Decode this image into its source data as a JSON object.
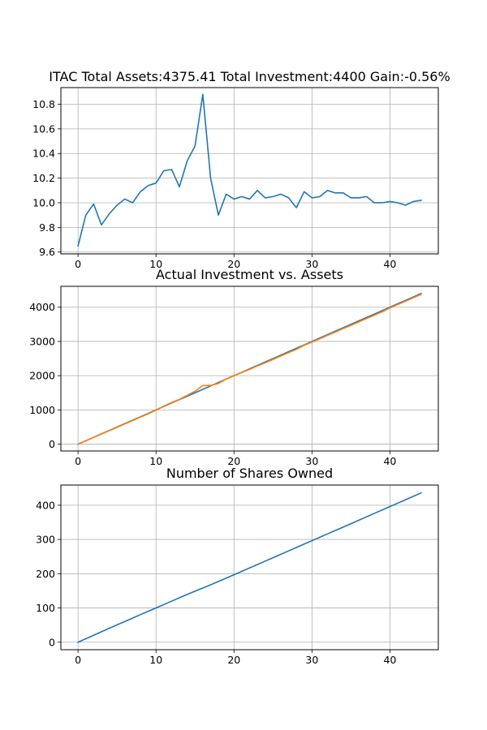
{
  "chart_data": [
    {
      "type": "line",
      "title": "ITAC Total Assets:4375.41  Total Investment:4400  Gain:-0.56%",
      "xlabel": "",
      "ylabel": "",
      "xlim": [
        -2.2,
        46.2
      ],
      "ylim": [
        9.585,
        10.935
      ],
      "xticks": [
        0,
        10,
        20,
        30,
        40
      ],
      "yticks": [
        9.6,
        9.8,
        10.0,
        10.2,
        10.4,
        10.6,
        10.8
      ],
      "ytick_labels": [
        "9.6",
        "9.8",
        "10.0",
        "10.2",
        "10.4",
        "10.6",
        "10.8"
      ],
      "grid": true,
      "series": [
        {
          "color": "#1f77b4",
          "x": [
            0,
            1,
            2,
            3,
            4,
            5,
            6,
            7,
            8,
            9,
            10,
            11,
            12,
            13,
            14,
            15,
            16,
            17,
            18,
            19,
            20,
            21,
            22,
            23,
            24,
            25,
            26,
            27,
            28,
            29,
            30,
            31,
            32,
            33,
            34,
            35,
            36,
            37,
            38,
            39,
            40,
            41,
            42,
            43,
            44
          ],
          "values": [
            9.65,
            9.9,
            9.99,
            9.82,
            9.91,
            9.98,
            10.03,
            10.0,
            10.09,
            10.14,
            10.16,
            10.26,
            10.27,
            10.13,
            10.34,
            10.46,
            10.88,
            10.2,
            9.9,
            10.07,
            10.03,
            10.05,
            10.03,
            10.1,
            10.04,
            10.05,
            10.07,
            10.04,
            9.96,
            10.09,
            10.04,
            10.05,
            10.1,
            10.08,
            10.08,
            10.04,
            10.04,
            10.05,
            10.0,
            10.0,
            10.01,
            10.0,
            9.98,
            10.01,
            10.02
          ]
        }
      ]
    },
    {
      "type": "line",
      "title": "Actual Investment vs. Assets",
      "xlabel": "",
      "ylabel": "",
      "xlim": [
        -2.2,
        46.2
      ],
      "ylim": [
        -200,
        4610
      ],
      "xticks": [
        0,
        10,
        20,
        30,
        40
      ],
      "yticks": [
        0,
        1000,
        2000,
        3000,
        4000
      ],
      "ytick_labels": [
        "0",
        "1000",
        "2000",
        "3000",
        "4000"
      ],
      "grid": true,
      "series": [
        {
          "color": "#1f77b4",
          "x": [
            0,
            1,
            2,
            3,
            4,
            5,
            6,
            7,
            8,
            9,
            10,
            11,
            12,
            13,
            14,
            15,
            16,
            17,
            18,
            19,
            20,
            21,
            22,
            23,
            24,
            25,
            26,
            27,
            28,
            29,
            30,
            31,
            32,
            33,
            34,
            35,
            36,
            37,
            38,
            39,
            40,
            41,
            42,
            43,
            44
          ],
          "values": [
            0,
            100,
            200,
            300,
            400,
            500,
            600,
            700,
            800,
            900,
            1000,
            1100,
            1200,
            1300,
            1400,
            1500,
            1600,
            1700,
            1800,
            1900,
            2000,
            2100,
            2200,
            2300,
            2400,
            2500,
            2600,
            2700,
            2800,
            2900,
            3000,
            3100,
            3200,
            3300,
            3400,
            3500,
            3600,
            3700,
            3800,
            3900,
            4000,
            4100,
            4200,
            4300,
            4400
          ]
        },
        {
          "color": "#ff7f0e",
          "x": [
            0,
            1,
            2,
            3,
            4,
            5,
            6,
            7,
            8,
            9,
            10,
            11,
            12,
            13,
            14,
            15,
            16,
            17,
            18,
            19,
            20,
            21,
            22,
            23,
            24,
            25,
            26,
            27,
            28,
            29,
            30,
            31,
            32,
            33,
            34,
            35,
            36,
            37,
            38,
            39,
            40,
            41,
            42,
            43,
            44
          ],
          "values": [
            0,
            99,
            198,
            295,
            393,
            491,
            590,
            688,
            789,
            887,
            991,
            1109,
            1212,
            1308,
            1426,
            1545,
            1710,
            1713,
            1771,
            1900,
            2000,
            2092,
            2183,
            2286,
            2378,
            2475,
            2576,
            2673,
            2769,
            2888,
            2980,
            3077,
            3180,
            3274,
            3376,
            3469,
            3570,
            3671,
            3767,
            3867,
            3979,
            4078,
            4174,
            4278,
            4375
          ]
        }
      ]
    },
    {
      "type": "line",
      "title": "Number of Shares Owned",
      "xlabel": "",
      "ylabel": "",
      "xlim": [
        -2.2,
        46.2
      ],
      "ylim": [
        -21.85,
        458.85
      ],
      "xticks": [
        0,
        10,
        20,
        30,
        40
      ],
      "yticks": [
        0,
        100,
        200,
        300,
        400
      ],
      "ytick_labels": [
        "0",
        "100",
        "200",
        "300",
        "400"
      ],
      "grid": true,
      "series": [
        {
          "color": "#1f77b4",
          "x": [
            0,
            1,
            2,
            3,
            4,
            5,
            6,
            7,
            8,
            9,
            10,
            11,
            12,
            13,
            14,
            15,
            16,
            17,
            18,
            19,
            20,
            21,
            22,
            23,
            24,
            25,
            26,
            27,
            28,
            29,
            30,
            31,
            32,
            33,
            34,
            35,
            36,
            37,
            38,
            39,
            40,
            41,
            42,
            43,
            44
          ],
          "values": [
            0,
            10.2,
            20.2,
            30.5,
            40.6,
            50.6,
            60.5,
            70.5,
            80.4,
            90.3,
            100.2,
            110.0,
            119.8,
            129.7,
            139.4,
            149.0,
            158.2,
            167.6,
            177.4,
            187.1,
            197.0,
            206.9,
            216.9,
            226.8,
            236.7,
            246.7,
            256.6,
            266.6,
            276.6,
            286.5,
            296.4,
            306.4,
            316.3,
            326.2,
            336.1,
            346.1,
            356.1,
            366.1,
            376.1,
            386.1,
            396.0,
            406.0,
            416.0,
            426.0,
            436.0
          ]
        }
      ]
    }
  ]
}
